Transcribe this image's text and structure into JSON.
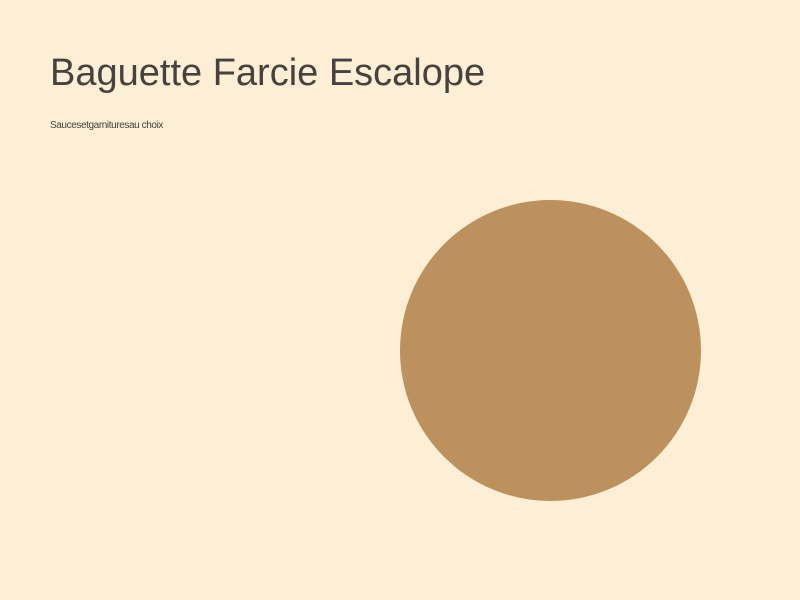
{
  "page": {
    "title": "Baguette Farcie Escalope",
    "subtitle": "Saucesetgarnituresau choix"
  },
  "colors": {
    "background": "#fdefd5",
    "text": "#45423f",
    "circle": "#bd915e"
  }
}
